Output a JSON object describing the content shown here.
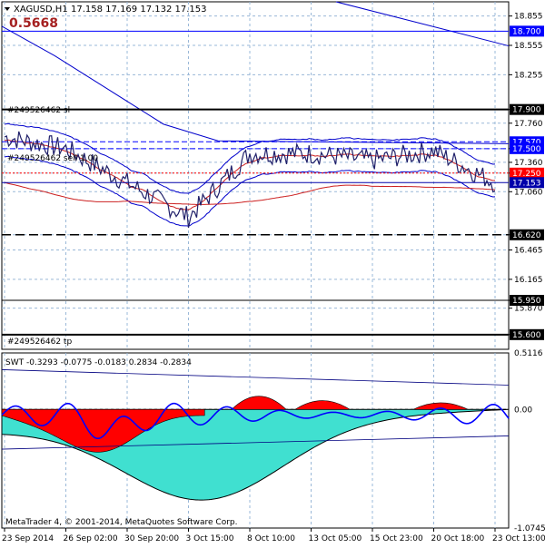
{
  "header": {
    "symbol": "XAGUSD,H1",
    "ohlc": "17.158 17.169 17.132 17.153",
    "indicator_value": "0.5668"
  },
  "main_price_axis": {
    "ticks": [
      "18.855",
      "18.555",
      "18.255",
      "17.900",
      "17.760",
      "17.500",
      "17.360",
      "17.250",
      "17.060",
      "16.620",
      "16.465",
      "16.165",
      "15.950",
      "15.870",
      "15.600"
    ]
  },
  "highlighted_levels": [
    {
      "label": "18.700",
      "color": "#0000ff"
    },
    {
      "label": "17.570",
      "color": "#0000ff"
    },
    {
      "label": "17.500",
      "color": "#0000ff"
    },
    {
      "label": "17.250",
      "color": "#ff0000"
    },
    {
      "label": "17.153",
      "color": "#0000aa"
    },
    {
      "label": "17.900",
      "color": "#000000"
    },
    {
      "label": "16.620",
      "color": "#000000"
    },
    {
      "label": "15.950",
      "color": "#000000"
    },
    {
      "label": "15.600",
      "color": "#000000"
    }
  ],
  "order_labels": {
    "sl": "#249526462 sl",
    "sell": "#249526462 sell 1.00",
    "tp": "#249526462 tp"
  },
  "subwindow": {
    "label": "SWT -0.3293 -0.0775 -0.0183 0.2834 -0.2834",
    "axis_ticks": [
      "0.5116",
      "0.00",
      "-1.0745"
    ]
  },
  "time_axis": {
    "labels": [
      "23 Sep 2014",
      "26 Sep 02:00",
      "30 Sep 20:00",
      "3 Oct 15:00",
      "8 Oct 10:00",
      "13 Oct 05:00",
      "15 Oct 23:00",
      "20 Oct 18:00",
      "23 Oct 13:00"
    ]
  },
  "copyright": "MetaTrader 4, © 2001-2014, MetaQuotes Software Corp.",
  "colors": {
    "background": "#ffffff",
    "grid": "#9ab8d8",
    "price_line": "#20206a",
    "bands": "#0000cc",
    "ma_red": "#cc2020",
    "histogram_red": "#ff0000",
    "histogram_teal": "#40e0d0",
    "swt_line": "#0000ff"
  },
  "chart_data": {
    "type": "line",
    "title": "XAGUSD,H1",
    "x": [
      "23 Sep 2014",
      "26 Sep 02:00",
      "30 Sep 20:00",
      "3 Oct 15:00",
      "8 Oct 10:00",
      "13 Oct 05:00",
      "15 Oct 23:00",
      "20 Oct 18:00",
      "23 Oct 13:00"
    ],
    "series": [
      {
        "name": "",
        "values": [
          17.62,
          17.5,
          17.15,
          16.8,
          17.45,
          17.45,
          17.38,
          17.48,
          17.15
        ]
      }
    ],
    "ylim": [
      15.45,
      19.0
    ],
    "grid": true,
    "levels": {
      "sl": 17.9,
      "sell": 17.5,
      "tp": 15.6,
      "red_dotted": 17.25,
      "current": 17.153
    }
  }
}
